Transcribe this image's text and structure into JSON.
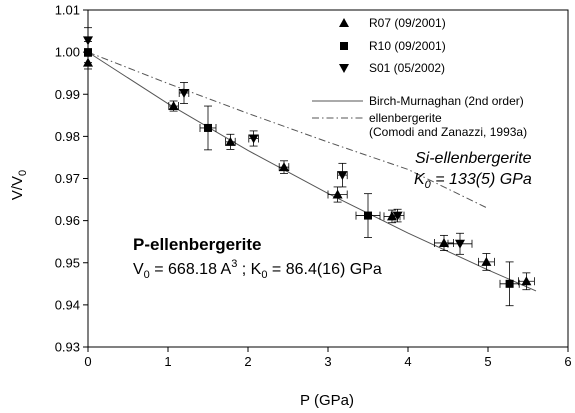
{
  "chart_data": {
    "type": "scatter",
    "xlabel": "P (GPa)",
    "ylabel": {
      "main": "V/V",
      "sub": "0"
    },
    "xlim": [
      0,
      6
    ],
    "ylim": [
      0.93,
      1.01
    ],
    "x_ticks": [
      "0",
      "1",
      "2",
      "3",
      "4",
      "5",
      "6"
    ],
    "y_ticks": [
      "0.93",
      "0.94",
      "0.95",
      "0.96",
      "0.97",
      "0.98",
      "0.99",
      "1.00",
      "1.01"
    ],
    "grid": false,
    "legend_placement": "top-right",
    "series": [
      {
        "name": "R07 (09/2001)",
        "marker": "triangle-up",
        "color": "#000000",
        "points": [
          {
            "x": 0.0,
            "y": 0.9975,
            "xerr": 0.0,
            "yerr": 0.0015
          },
          {
            "x": 1.07,
            "y": 0.9872,
            "xerr": 0.06,
            "yerr": 0.0012
          },
          {
            "x": 1.78,
            "y": 0.9787,
            "xerr": 0.06,
            "yerr": 0.0018
          },
          {
            "x": 2.45,
            "y": 0.9727,
            "xerr": 0.06,
            "yerr": 0.0015
          },
          {
            "x": 3.12,
            "y": 0.9662,
            "xerr": 0.12,
            "yerr": 0.0018
          },
          {
            "x": 3.8,
            "y": 0.961,
            "xerr": 0.1,
            "yerr": 0.0015
          },
          {
            "x": 4.45,
            "y": 0.9547,
            "xerr": 0.12,
            "yerr": 0.0018
          },
          {
            "x": 4.98,
            "y": 0.9502,
            "xerr": 0.1,
            "yerr": 0.002
          },
          {
            "x": 5.48,
            "y": 0.9456,
            "xerr": 0.1,
            "yerr": 0.002
          }
        ]
      },
      {
        "name": "R10 (09/2001)",
        "marker": "square",
        "color": "#000000",
        "points": [
          {
            "x": 0.0,
            "y": 1.0,
            "xerr": 0.0,
            "yerr": 0.0025
          },
          {
            "x": 1.5,
            "y": 0.982,
            "xerr": 0.1,
            "yerr": 0.0052
          },
          {
            "x": 3.5,
            "y": 0.9612,
            "xerr": 0.15,
            "yerr": 0.0052
          },
          {
            "x": 5.27,
            "y": 0.945,
            "xerr": 0.12,
            "yerr": 0.0052
          }
        ]
      },
      {
        "name": "S01 (05/2002)",
        "marker": "triangle-down",
        "color": "#000000",
        "points": [
          {
            "x": 0.0,
            "y": 1.0028,
            "xerr": 0.0,
            "yerr": 0.003
          },
          {
            "x": 1.2,
            "y": 0.9903,
            "xerr": 0.06,
            "yerr": 0.0025
          },
          {
            "x": 2.07,
            "y": 0.9795,
            "xerr": 0.06,
            "yerr": 0.0018
          },
          {
            "x": 3.18,
            "y": 0.9708,
            "xerr": 0.06,
            "yerr": 0.0028
          },
          {
            "x": 3.87,
            "y": 0.9612,
            "xerr": 0.08,
            "yerr": 0.0015
          },
          {
            "x": 4.65,
            "y": 0.9545,
            "xerr": 0.15,
            "yerr": 0.0025
          }
        ]
      }
    ],
    "lines": [
      {
        "name": "Birch-Murnaghan (2nd order)",
        "style": "solid",
        "color": "#555555",
        "x": [
          0,
          1,
          2,
          3,
          4,
          5,
          5.6
        ],
        "y": [
          1.0,
          0.98775,
          0.97665,
          0.96645,
          0.95705,
          0.9483,
          0.9433
        ]
      },
      {
        "name": "ellenbergerite",
        "name_line2": "(Comodi and Zanazzi, 1993a)",
        "style": "dash-dot",
        "color": "#555555",
        "x": [
          0,
          1,
          2,
          3,
          4,
          5
        ],
        "y": [
          1.0,
          0.99255,
          0.98545,
          0.97865,
          0.97215,
          0.9629
        ]
      }
    ],
    "annotations": {
      "si_title": "Si-ellenbergerite",
      "si_k_main": "K",
      "si_k_sub": "0",
      "si_k_value": " = 133(5) GPa",
      "p_title": "P-ellenbergerite",
      "p_v_main": "V",
      "p_v_sub": "0",
      "p_v_value": " = 668.18 A",
      "p_v_sup": "3",
      "p_sep": " ; K",
      "p_k_sub": "0",
      "p_k_value": " = 86.4(16) GPa"
    }
  }
}
